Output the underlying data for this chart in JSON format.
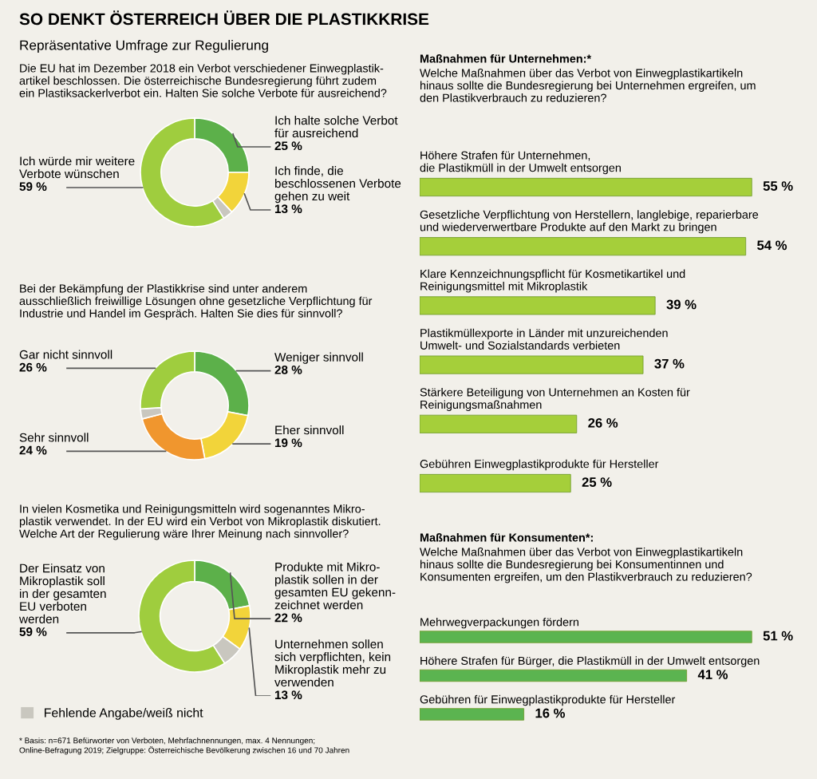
{
  "chart_data": [
    {
      "type": "donut",
      "title": "SO DENKT ÖSTERREICH ÜBER DIE PLASTIKKRISE",
      "subtitle": "Repräsentative Umfrage zur Regulierung",
      "annotations": [
        "Die EU hat im Dezember 2018 ein Verbot verschiedener Einwegplastik-\nartikel beschlossen. Die österreichische Bundesregierung führt zudem\nein Plastiksackerlverbot ein. Halten Sie solche Verbote für ausreichend?"
      ],
      "categories": [
        "Ich halte solche Verbot\nfür ausreichend",
        "Ich finde, die\nbeschlossenen Verbote\ngehen zu weit",
        null,
        "Ich würde mir weitere\nVerbote wünschen"
      ],
      "values": [
        25,
        13,
        3,
        59
      ],
      "value_labels": [
        "25 %",
        "13 %",
        null,
        "59 %"
      ],
      "colors": [
        "#5cb04a",
        "#f2d43a",
        "#c9c7bf",
        "#9fcd3e"
      ]
    },
    {
      "type": "donut",
      "title": "Bei der Bekämpfung der Plastikkrise sind unter anderem\nausschließlich freiwillige Lösungen ohne gesetzliche Verpflichtung für\nIndustrie und Handel im Gespräch. Halten Sie dies für sinnvoll?",
      "categories": [
        "Weniger sinnvoll",
        "Eher sinnvoll",
        "Sehr sinnvoll",
        null,
        "Gar nicht sinnvoll"
      ],
      "values": [
        28,
        19,
        24,
        3,
        26
      ],
      "value_labels": [
        "28 %",
        "19 %",
        "24 %",
        null,
        "26 %"
      ],
      "colors": [
        "#5cb04a",
        "#f2d43a",
        "#f0962e",
        "#c9c7bf",
        "#9fcd3e"
      ]
    },
    {
      "type": "donut",
      "title": "In vielen Kosmetika und Reinigungsmitteln wird sogenanntes Mikro-\nplastik verwendet. In der EU wird ein Verbot von Mikroplastik diskutiert.\nWelche Art der Regulierung wäre Ihrer Meinung nach sinnvoller?",
      "categories": [
        "Produkte mit Mikro-\nplastik sollen in der\ngesamten EU gekenn-\nzeichnet werden",
        "Unternehmen sollen\nsich verpflichten, kein\nMikroplastik mehr zu\nverwenden",
        "Fehlende Angabe/weiß nicht",
        "Der Einsatz von\nMikroplastik soll\nin der gesamten\nEU verboten\nwerden"
      ],
      "values": [
        22,
        13,
        6,
        59
      ],
      "value_labels": [
        "22 %",
        "13 %",
        null,
        "59 %"
      ],
      "colors": [
        "#5cb04a",
        "#f2d43a",
        "#c9c7bf",
        "#9fcd3e"
      ],
      "legend": "bottom left",
      "annotations": [
        "* Basis: n=671 Befürworter von Verboten, Mehrfachnennungen, max. 4 Nennungen;\nOnline-Befragung 2019; Zielgruppe: Österreichische Bevölkerung zwischen 16 und 70 Jahren"
      ]
    },
    {
      "type": "bar",
      "orientation": "horizontal",
      "title": "Maßnahmen für Unternehmen:*",
      "subtitle": "Welche Maßnahmen über das Verbot von Einwegplastikartikeln\nhinaus sollte die Bundesregierung bei Unternehmen ergreifen, um\nden Plastikverbrauch zu reduzieren?",
      "categories": [
        "Höhere Strafen für Unternehmen,\ndie Plastikmüll in der Umwelt entsorgen",
        "Gesetzliche Verpflichtung von Herstellern, langlebige, reparierbare\nund wiederverwertbare Produkte auf den Markt zu bringen",
        "Klare Kennzeichnungspflicht für Kosmetikartikel und\nReinigungsmittel mit Mikroplastik",
        "Plastikmüllexporte in Länder mit unzureichenden\nUmwelt- und Sozialstandards verbieten",
        "Stärkere Beteiligung von Unternehmen an Kosten für\nReinigungsmaßnahmen",
        "Gebühren Einwegplastikprodukte für Hersteller"
      ],
      "values": [
        55,
        54,
        39,
        37,
        26,
        25
      ],
      "value_labels": [
        "55 %",
        "54 %",
        "39 %",
        "37 %",
        "26 %",
        "25 %"
      ],
      "color": "#a5cf3a"
    },
    {
      "type": "bar",
      "orientation": "horizontal",
      "title": "Maßnahmen für Konsumenten*:",
      "subtitle": "Welche Maßnahmen über das Verbot von Einwegplastikartikeln\nhinaus sollte die Bundesregierung bei Konsumentinnen und\nKonsumenten ergreifen, um den Plastikverbrauch zu reduzieren?",
      "categories": [
        "Mehrwegverpackungen fördern",
        "Höhere Strafen für Bürger, die Plastikmüll in der Umwelt entsorgen",
        "Gebühren für Einwegplastikprodukte für Hersteller"
      ],
      "values": [
        51,
        41,
        16
      ],
      "value_labels": [
        "51 %",
        "41 %",
        "16 %"
      ],
      "color": "#5bb450"
    }
  ]
}
